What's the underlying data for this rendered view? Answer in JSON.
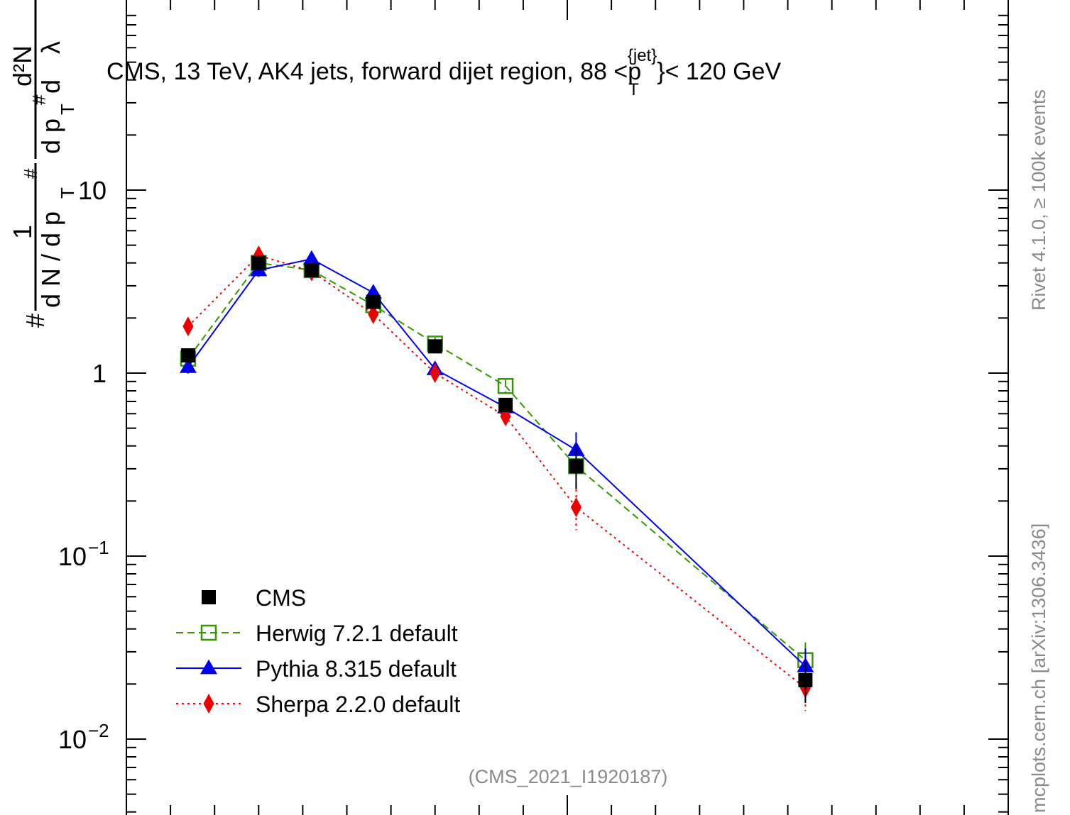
{
  "chart_data": {
    "type": "scatter",
    "title": "CMS, 13 TeV, AK4 jets, forward dijet region, 88 <p_T^{jet}< 120 GeV",
    "title_parts": {
      "pre": "CMS, 13 TeV, AK4 jets, forward dijet region, 88 <p",
      "sup": "{jet}",
      "sub": "T",
      "post": "}< 120 GeV"
    },
    "ylabel": "1 / dN/dp_T^# · d²N / dp_T^# dλ",
    "ylabel_parts": {
      "hash": "#",
      "one": "1",
      "den": "d N / d p",
      "sub": "T",
      "sup": "#",
      "num": "d²N",
      "den2": "d p",
      "sup2": "#",
      "den2_tail": " d",
      "lambda": "λ"
    },
    "y_scale": "log",
    "ylim": [
      0.004,
      60
    ],
    "y_tick_labels": [
      {
        "value": 10,
        "label": "10"
      },
      {
        "value": 1,
        "label": "1"
      },
      {
        "value": 0.1,
        "label": "10",
        "exp": "−1"
      },
      {
        "value": 0.01,
        "label": "10",
        "exp": "−2"
      }
    ],
    "xlim": [
      0,
      1
    ],
    "grid": false,
    "legend_position": "bottom-left",
    "series": [
      {
        "name": "CMS",
        "color": "#000000",
        "marker": "filled-square",
        "line": "none",
        "x": [
          0.07,
          0.15,
          0.21,
          0.28,
          0.35,
          0.43,
          0.51,
          0.77
        ],
        "y": [
          1.25,
          4.0,
          3.65,
          2.45,
          1.4,
          0.67,
          0.31,
          0.021
        ]
      },
      {
        "name": "Herwig 7.2.1 default",
        "color": "#339900",
        "marker": "open-square",
        "line": "dashed",
        "x": [
          0.07,
          0.15,
          0.21,
          0.28,
          0.35,
          0.43,
          0.51,
          0.77
        ],
        "y": [
          1.2,
          4.0,
          3.65,
          2.35,
          1.45,
          0.85,
          0.31,
          0.027
        ]
      },
      {
        "name": "Pythia 8.315 default",
        "color": "#0000ee",
        "marker": "filled-triangle",
        "line": "solid",
        "x": [
          0.07,
          0.15,
          0.21,
          0.28,
          0.35,
          0.43,
          0.51,
          0.77
        ],
        "y": [
          1.08,
          3.65,
          4.2,
          2.75,
          1.05,
          0.65,
          0.38,
          0.025
        ]
      },
      {
        "name": "Sherpa 2.2.0 default",
        "color": "#ee0000",
        "marker": "filled-diamond",
        "line": "dotted",
        "x": [
          0.07,
          0.15,
          0.21,
          0.28,
          0.35,
          0.43,
          0.51,
          0.77
        ],
        "y": [
          1.8,
          4.4,
          3.6,
          2.1,
          1.0,
          0.58,
          0.185,
          0.019
        ]
      }
    ],
    "annotations": {
      "watermark": "(CMS_2021_I1920187)",
      "side_top": "Rivet 4.1.0, ≥ 100k events",
      "side_bottom": "mcplots.cern.ch [arXiv:1306.3436]"
    }
  }
}
